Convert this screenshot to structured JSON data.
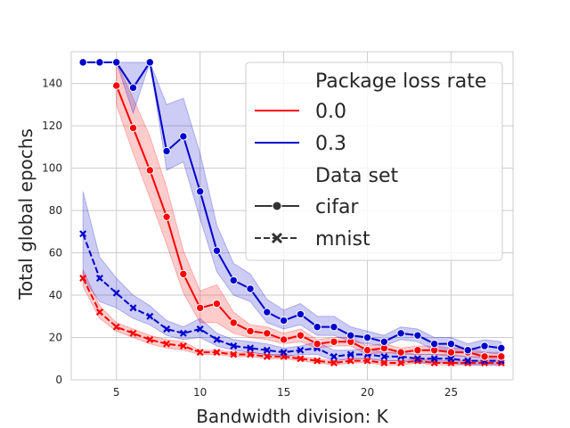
{
  "chart_data": {
    "type": "line",
    "title": "",
    "xlabel": "Bandwidth division: K",
    "ylabel": "Total global epochs",
    "xlim": [
      2.3,
      28.7
    ],
    "ylim": [
      0,
      155
    ],
    "xticks": [
      5,
      10,
      15,
      20,
      25
    ],
    "yticks": [
      0,
      20,
      40,
      60,
      80,
      100,
      120,
      140
    ],
    "grid": true,
    "legend": {
      "position": "top-right",
      "hue_title": "Package loss rate",
      "style_title": "Data set",
      "hue_entries": [
        {
          "label": "0.0",
          "color": "#ff0000"
        },
        {
          "label": "0.3",
          "color": "#0000cc"
        }
      ],
      "style_entries": [
        {
          "label": "cifar",
          "marker": "circle",
          "dash": "solid"
        },
        {
          "label": "mnist",
          "marker": "x",
          "dash": "dashed"
        }
      ]
    },
    "series": [
      {
        "name": "0.0 / mnist",
        "color": "#ff0000",
        "marker": "x",
        "dashed": true,
        "x": [
          3,
          4,
          5,
          6,
          7,
          8,
          9,
          10,
          11,
          12,
          13,
          14,
          15,
          16,
          17,
          18,
          19,
          20,
          21,
          22,
          23,
          24,
          25,
          26,
          27,
          28
        ],
        "y": [
          48,
          32,
          25,
          22,
          19,
          17,
          16,
          13,
          13,
          12,
          12,
          11,
          11,
          10,
          9,
          8,
          9,
          9,
          8,
          8,
          9,
          8,
          8,
          8,
          8,
          8
        ],
        "lower": [
          44,
          29,
          23,
          20,
          17,
          15,
          14,
          12,
          12,
          11,
          11,
          10,
          10,
          9,
          8,
          7,
          8,
          8,
          7,
          7,
          8,
          7,
          7,
          7,
          7,
          7
        ],
        "upper": [
          52,
          35,
          27,
          24,
          21,
          19,
          18,
          14,
          14,
          13,
          13,
          12,
          12,
          11,
          10,
          9,
          10,
          10,
          9,
          9,
          10,
          9,
          9,
          9,
          9,
          9
        ]
      },
      {
        "name": "0.3 / mnist",
        "color": "#0000cc",
        "marker": "x",
        "dashed": true,
        "x": [
          3,
          4,
          5,
          6,
          7,
          8,
          9,
          10,
          11,
          12,
          13,
          14,
          15,
          16,
          17,
          18,
          19,
          20,
          21,
          22,
          23,
          24,
          25,
          26,
          27,
          28
        ],
        "y": [
          69,
          48,
          41,
          34,
          30,
          24,
          22,
          24,
          19,
          16,
          15,
          14,
          13,
          14,
          15,
          11,
          12,
          12,
          11,
          11,
          10,
          10,
          10,
          9,
          9,
          9
        ],
        "lower": [
          48,
          37,
          34,
          29,
          26,
          21,
          19,
          20,
          16,
          14,
          13,
          12,
          11,
          12,
          12,
          9,
          10,
          10,
          9,
          9,
          8,
          8,
          8,
          7,
          7,
          7
        ],
        "upper": [
          89,
          58,
          48,
          40,
          35,
          28,
          25,
          29,
          22,
          19,
          18,
          17,
          15,
          16,
          18,
          14,
          14,
          15,
          13,
          13,
          12,
          12,
          12,
          11,
          11,
          11
        ]
      },
      {
        "name": "0.0 / cifar",
        "color": "#ff0000",
        "marker": "circle",
        "dashed": false,
        "x": [
          5,
          6,
          7,
          8,
          9,
          10,
          11,
          12,
          13,
          14,
          15,
          16,
          17,
          18,
          19,
          20,
          21,
          22,
          23,
          24,
          25,
          26,
          27,
          28
        ],
        "y": [
          139,
          119,
          99,
          77,
          50,
          34,
          36,
          27,
          23,
          22,
          19,
          21,
          17,
          18,
          18,
          14,
          15,
          13,
          14,
          14,
          13,
          13,
          11,
          11
        ],
        "lower": [
          130,
          107,
          86,
          64,
          41,
          27,
          27,
          22,
          20,
          19,
          17,
          18,
          15,
          16,
          16,
          12,
          13,
          12,
          12,
          12,
          11,
          11,
          10,
          10
        ],
        "upper": [
          150,
          133,
          115,
          91,
          61,
          42,
          45,
          32,
          26,
          25,
          22,
          24,
          19,
          20,
          20,
          16,
          17,
          15,
          16,
          16,
          15,
          15,
          13,
          13
        ]
      },
      {
        "name": "0.3 / cifar",
        "color": "#0000cc",
        "marker": "circle",
        "dashed": false,
        "x": [
          3,
          4,
          5,
          6,
          7,
          8,
          9,
          10,
          11,
          12,
          13,
          14,
          15,
          16,
          17,
          18,
          19,
          20,
          21,
          22,
          23,
          24,
          25,
          26,
          27,
          28
        ],
        "y": [
          150,
          150,
          150,
          138,
          150,
          108,
          115,
          89,
          61,
          47,
          43,
          32,
          28,
          31,
          25,
          25,
          21,
          20,
          18,
          22,
          21,
          17,
          17,
          14,
          16,
          15
        ],
        "lower": [
          150,
          150,
          150,
          126,
          150,
          99,
          103,
          76,
          51,
          40,
          37,
          27,
          24,
          26,
          21,
          21,
          18,
          17,
          16,
          19,
          18,
          14,
          14,
          12,
          13,
          12
        ],
        "upper": [
          150,
          150,
          150,
          150,
          150,
          130,
          133,
          107,
          73,
          55,
          50,
          38,
          33,
          36,
          30,
          30,
          25,
          23,
          21,
          25,
          24,
          20,
          20,
          17,
          19,
          18
        ]
      }
    ]
  }
}
